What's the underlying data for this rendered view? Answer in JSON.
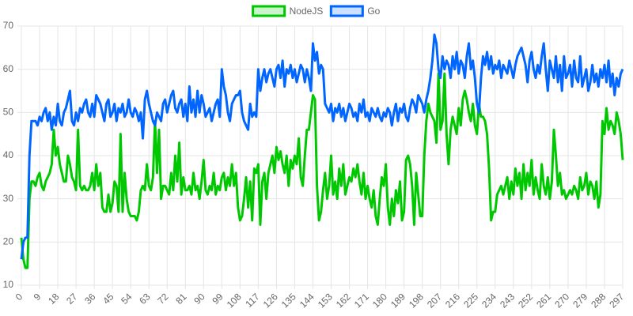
{
  "chart_data": {
    "type": "line",
    "x": [
      0,
      1,
      2,
      3,
      4,
      5,
      6,
      7,
      8,
      9,
      10,
      11,
      12,
      13,
      14,
      15,
      16,
      17,
      18,
      19,
      20,
      21,
      22,
      23,
      24,
      25,
      26,
      27,
      28,
      29,
      30,
      31,
      32,
      33,
      34,
      35,
      36,
      37,
      38,
      39,
      40,
      41,
      42,
      43,
      44,
      45,
      46,
      47,
      48,
      49,
      50,
      51,
      52,
      53,
      54,
      55,
      56,
      57,
      58,
      59,
      60,
      61,
      62,
      63,
      64,
      65,
      66,
      67,
      68,
      69,
      70,
      71,
      72,
      73,
      74,
      75,
      76,
      77,
      78,
      79,
      80,
      81,
      82,
      83,
      84,
      85,
      86,
      87,
      88,
      89,
      90,
      91,
      92,
      93,
      94,
      95,
      96,
      97,
      98,
      99,
      100,
      101,
      102,
      103,
      104,
      105,
      106,
      107,
      108,
      109,
      110,
      111,
      112,
      113,
      114,
      115,
      116,
      117,
      118,
      119,
      120,
      121,
      122,
      123,
      124,
      125,
      126,
      127,
      128,
      129,
      130,
      131,
      132,
      133,
      134,
      135,
      136,
      137,
      138,
      139,
      140,
      141,
      142,
      143,
      144,
      145,
      146,
      147,
      148,
      149,
      150,
      151,
      152,
      153,
      154,
      155,
      156,
      157,
      158,
      159,
      160,
      161,
      162,
      163,
      164,
      165,
      166,
      167,
      168,
      169,
      170,
      171,
      172,
      173,
      174,
      175,
      176,
      177,
      178,
      179,
      180,
      181,
      182,
      183,
      184,
      185,
      186,
      187,
      188,
      189,
      190,
      191,
      192,
      193,
      194,
      195,
      196,
      197,
      198,
      199,
      200,
      201,
      202,
      203,
      204,
      205,
      206,
      207,
      208,
      209,
      210,
      211,
      212,
      213,
      214,
      215,
      216,
      217,
      218,
      219,
      220,
      221,
      222,
      223,
      224,
      225,
      226,
      227,
      228,
      229,
      230,
      231,
      232,
      233,
      234,
      235,
      236,
      237,
      238,
      239,
      240,
      241,
      242,
      243,
      244,
      245,
      246,
      247,
      248,
      249,
      250,
      251,
      252,
      253,
      254,
      255,
      256,
      257,
      258,
      259,
      260,
      261,
      262,
      263,
      264,
      265,
      266,
      267,
      268,
      269,
      270,
      271,
      272,
      273,
      274,
      275,
      276,
      277,
      278,
      279,
      280,
      281,
      282,
      283,
      284,
      285,
      286,
      287,
      288,
      289,
      290,
      291,
      292,
      293,
      294,
      295,
      296,
      297
    ],
    "series": [
      {
        "name": "NodeJS",
        "color": "#00c800",
        "values": [
          21,
          16,
          14,
          14,
          30,
          34,
          34,
          33,
          35,
          36,
          33,
          32,
          34,
          35,
          36,
          38,
          46,
          40,
          42,
          38,
          36,
          34,
          34,
          40,
          38,
          35,
          34,
          32,
          46,
          33,
          32,
          33,
          32,
          32,
          33,
          36,
          32,
          38,
          33,
          36,
          28,
          27,
          27,
          31,
          27,
          29,
          34,
          33,
          27,
          45,
          27,
          36,
          30,
          27,
          26,
          26,
          26,
          25,
          27,
          32,
          33,
          32,
          38,
          33,
          32,
          35,
          48,
          36,
          46,
          30,
          33,
          33,
          32,
          31,
          36,
          32,
          40,
          34,
          43,
          31,
          35,
          32,
          32,
          33,
          31,
          36,
          32,
          33,
          30,
          34,
          39,
          32,
          31,
          33,
          32,
          36,
          31,
          33,
          32,
          35,
          36,
          32,
          35,
          33,
          38,
          33,
          36,
          28,
          25,
          26,
          30,
          35,
          28,
          34,
          25,
          37,
          36,
          38,
          24,
          34,
          36,
          30,
          36,
          38,
          40,
          36,
          42,
          39,
          41,
          38,
          36,
          40,
          33,
          39,
          37,
          40,
          38,
          44,
          35,
          33,
          40,
          46,
          46,
          50,
          54,
          53,
          33,
          25,
          27,
          32,
          36,
          30,
          33,
          40,
          31,
          34,
          30,
          37,
          33,
          38,
          31,
          33,
          35,
          34,
          37,
          35,
          38,
          34,
          31,
          36,
          30,
          33,
          30,
          28,
          32,
          26,
          24,
          30,
          35,
          33,
          38,
          28,
          24,
          30,
          26,
          32,
          29,
          34,
          25,
          27,
          39,
          40,
          38,
          33,
          24,
          36,
          31,
          26,
          26,
          40,
          48,
          52,
          50,
          49,
          48,
          43,
          59,
          46,
          48,
          59,
          45,
          38,
          46,
          49,
          47,
          45,
          51,
          47,
          53,
          55,
          53,
          50,
          48,
          52,
          47,
          45,
          52,
          49,
          49,
          48,
          45,
          37,
          25,
          27,
          27,
          31,
          32,
          33,
          31,
          33,
          35,
          30,
          34,
          31,
          37,
          33,
          36,
          30,
          38,
          32,
          36,
          33,
          39,
          31,
          35,
          32,
          30,
          38,
          33,
          31,
          35,
          30,
          34,
          46,
          40,
          33,
          36,
          31,
          32,
          30,
          31,
          32,
          31,
          33,
          32,
          30,
          35,
          32,
          33,
          36,
          31,
          34,
          33,
          30,
          34,
          28,
          31,
          48,
          45,
          51,
          46,
          48,
          47,
          45,
          50,
          48,
          45,
          39
        ]
      },
      {
        "name": "Go",
        "color": "#0066ff",
        "values": [
          16,
          20,
          21,
          21,
          40,
          48,
          48,
          48,
          47,
          49,
          48,
          50,
          51,
          48,
          50,
          46,
          49,
          47,
          52,
          48,
          47,
          50,
          51,
          53,
          55,
          48,
          47,
          50,
          48,
          51,
          50,
          52,
          53,
          50,
          49,
          52,
          49,
          54,
          53,
          52,
          50,
          48,
          52,
          53,
          49,
          50,
          52,
          48,
          51,
          50,
          52,
          49,
          50,
          53,
          50,
          49,
          51,
          50,
          48,
          50,
          44,
          53,
          55,
          52,
          50,
          48,
          47,
          50,
          49,
          48,
          52,
          53,
          50,
          52,
          54,
          55,
          51,
          50,
          52,
          53,
          49,
          52,
          48,
          56,
          50,
          53,
          49,
          55,
          50,
          54,
          52,
          49,
          50,
          51,
          48,
          50,
          52,
          53,
          49,
          60,
          56,
          54,
          50,
          48,
          52,
          53,
          54,
          54,
          55,
          50,
          48,
          47,
          46,
          52,
          49,
          50,
          49,
          60,
          55,
          58,
          60,
          57,
          59,
          60,
          58,
          56,
          60,
          61,
          58,
          62,
          56,
          60,
          59,
          61,
          58,
          60,
          57,
          59,
          61,
          60,
          57,
          60,
          58,
          55,
          66,
          62,
          64,
          59,
          61,
          60,
          52,
          51,
          50,
          52,
          48,
          51,
          50,
          52,
          49,
          51,
          48,
          50,
          52,
          51,
          49,
          50,
          48,
          52,
          50,
          53,
          49,
          50,
          48,
          51,
          50,
          49,
          51,
          49,
          48,
          50,
          49,
          51,
          50,
          47,
          50,
          52,
          48,
          51,
          50,
          52,
          49,
          48,
          51,
          53,
          52,
          50,
          54,
          53,
          52,
          50,
          53,
          55,
          58,
          62,
          68,
          66,
          60,
          58,
          63,
          60,
          62,
          61,
          58,
          63,
          60,
          64,
          59,
          62,
          61,
          58,
          63,
          66,
          60,
          62,
          58,
          52,
          50,
          58,
          63,
          61,
          64,
          60,
          63,
          59,
          61,
          60,
          62,
          58,
          61,
          60,
          59,
          62,
          60,
          58,
          61,
          63,
          64,
          65,
          63,
          61,
          57,
          62,
          64,
          60,
          58,
          61,
          59,
          63,
          66,
          60,
          55,
          62,
          60,
          58,
          63,
          57,
          61,
          55,
          63,
          58,
          59,
          61,
          56,
          62,
          58,
          57,
          63,
          56,
          58,
          60,
          55,
          57,
          61,
          57,
          59,
          56,
          60,
          58,
          61,
          57,
          62,
          56,
          59,
          54,
          58,
          56,
          59,
          60
        ]
      }
    ],
    "xlim": [
      0,
      297
    ],
    "xticks": [
      0,
      9,
      18,
      27,
      36,
      45,
      54,
      63,
      72,
      81,
      90,
      99,
      108,
      117,
      126,
      135,
      144,
      153,
      162,
      171,
      180,
      189,
      198,
      207,
      216,
      225,
      234,
      243,
      252,
      261,
      270,
      279,
      288,
      297
    ],
    "ylim": [
      10,
      70
    ],
    "yticks": [
      10,
      20,
      30,
      40,
      50,
      60,
      70
    ],
    "grid": true,
    "legend": "top"
  }
}
